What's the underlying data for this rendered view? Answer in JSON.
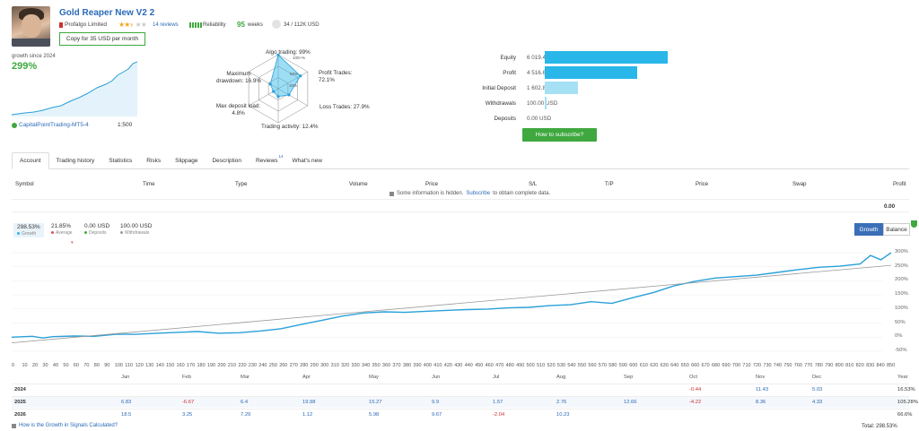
{
  "header": {
    "title": "Gold Reaper New V2 2",
    "provider": "Profalgo Limited",
    "rating": 2.5,
    "reviews": "14 reviews",
    "reliability_label": "Reliability",
    "weeks_num": "95",
    "weeks_label": "weeks",
    "subscribers": "34 / 112K USD",
    "copy_button": "Copy for 35 USD per month"
  },
  "summary": {
    "growth_since": "growth since 2024",
    "growth_value": "299%",
    "account": "CapitalPointTrading-MT5-4",
    "leverage": "1:500"
  },
  "radar": {
    "algo": "Algo trading: 99%",
    "profit_trades": "Profit Trades: 72.1%",
    "loss_trades": "Loss Trades: 27.9%",
    "trading_activity": "Trading activity: 12.4%",
    "max_deposit_load": "Max deposit load: 4.8%",
    "max_drawdown": "Maximum drawdown: 16.9%",
    "rings": [
      "100+%",
      "50%",
      "30%"
    ],
    "values": [
      0.99,
      0.721,
      0.279,
      0.124,
      0.048,
      0.169
    ]
  },
  "financials": [
    {
      "label": "Equity",
      "value": "6 019.48 USD",
      "amount": 6019.48,
      "color": "#29b6e8"
    },
    {
      "label": "Profit",
      "value": "4 516.63 USD",
      "amount": 4516.63,
      "color": "#29b6e8"
    },
    {
      "label": "Initial Deposit",
      "value": "1 602.85 USD",
      "amount": 1602.85,
      "color": "#a6e0f5"
    },
    {
      "label": "Withdrawals",
      "value": "100.00 USD",
      "amount": 100.0,
      "color": "#a6e0f5"
    },
    {
      "label": "Deposits",
      "value": "0.00 USD",
      "amount": 0,
      "color": "#a6e0f5"
    }
  ],
  "subscribe_button": "How to subscribe?",
  "tabs": [
    {
      "label": "Account",
      "active": true
    },
    {
      "label": "Trading history"
    },
    {
      "label": "Statistics"
    },
    {
      "label": "Risks"
    },
    {
      "label": "Slippage"
    },
    {
      "label": "Description"
    },
    {
      "label": "Reviews",
      "sup": "14"
    },
    {
      "label": "What's new"
    }
  ],
  "table": {
    "headers": [
      "Symbol",
      "Time",
      "Type",
      "Volume",
      "Price",
      "S/L",
      "T/P",
      "Price",
      "Swap",
      "Profit"
    ],
    "hidden_note_pre": "Some information is hidden.",
    "hidden_note_link": "Subscribe",
    "hidden_note_post": "to obtain complete data.",
    "total_profit": "0.00"
  },
  "stats": [
    {
      "value": "298.53%",
      "label": "Growth",
      "color": "#29b6e8"
    },
    {
      "value": "21.85%",
      "label": "Average",
      "color": "#e05050"
    },
    {
      "value": "0.00 USD",
      "label": "Deposits",
      "color": "#3fa83f"
    },
    {
      "value": "100.00 USD",
      "label": "Withdrawals",
      "color": "#999999"
    }
  ],
  "chart_toggle": {
    "growth": "Growth",
    "balance": "Balance"
  },
  "chart_data": {
    "type": "line",
    "x_ticks": [
      0,
      10,
      20,
      30,
      40,
      50,
      60,
      70,
      80,
      90,
      100,
      110,
      120,
      130,
      140,
      150,
      160,
      170,
      180,
      190,
      200,
      210,
      220,
      230,
      240,
      250,
      260,
      270,
      280,
      290,
      300,
      310,
      320,
      330,
      340,
      350,
      360,
      370,
      380,
      390,
      400,
      410,
      420,
      430,
      440,
      450,
      460,
      470,
      480,
      490,
      500,
      510,
      520,
      530,
      540,
      550,
      560,
      570,
      580,
      590,
      600,
      610,
      620,
      630,
      640,
      650,
      660,
      670,
      680,
      690,
      700,
      710,
      720,
      730,
      740,
      750,
      760,
      770,
      780,
      790,
      800,
      810,
      820,
      830,
      840,
      850
    ],
    "y_ticks": [
      "300%",
      "250%",
      "200%",
      "150%",
      "100%",
      "50%",
      "0%",
      "-50%"
    ],
    "ylim": [
      -50,
      300
    ],
    "xlim": [
      0,
      850
    ],
    "series": [
      {
        "color": "#29a0d8",
        "x": [
          0,
          20,
          30,
          40,
          60,
          80,
          100,
          120,
          140,
          160,
          180,
          200,
          220,
          240,
          260,
          280,
          300,
          320,
          340,
          360,
          380,
          400,
          420,
          440,
          460,
          480,
          500,
          520,
          540,
          560,
          580,
          600,
          620,
          640,
          660,
          680,
          700,
          720,
          740,
          760,
          780,
          800,
          820,
          830,
          840,
          850
        ],
        "values": [
          0,
          3,
          -3,
          2,
          4,
          3,
          10,
          10,
          14,
          17,
          20,
          14,
          16,
          22,
          30,
          45,
          60,
          75,
          86,
          90,
          88,
          92,
          95,
          98,
          100,
          104,
          106,
          112,
          115,
          126,
          120,
          140,
          158,
          182,
          198,
          210,
          215,
          220,
          230,
          240,
          248,
          252,
          260,
          290,
          275,
          300
        ]
      },
      {
        "color": "#999999",
        "x": [
          0,
          850
        ],
        "values": [
          -20,
          255
        ]
      }
    ]
  },
  "months": [
    "Jan",
    "Feb",
    "Mar",
    "Apr",
    "May",
    "Jun",
    "Jul",
    "Aug",
    "Sep",
    "Oct",
    "Nov",
    "Dec",
    "Year"
  ],
  "yearly": [
    {
      "year": "2024",
      "vals": [
        "",
        "",
        "",
        "",
        "",
        "",
        "",
        "",
        "",
        "-0.44",
        "11.43",
        "5.03",
        "16.53%"
      ]
    },
    {
      "year": "2025",
      "vals": [
        "6.83",
        "-6.67",
        "6.4",
        "19.98",
        "15.27",
        "9.9",
        "1.57",
        "2.76",
        "12.66",
        "-4.22",
        "8.36",
        "4.33",
        "105.28%"
      ]
    },
    {
      "year": "2026",
      "vals": [
        "18.5",
        "3.25",
        "7.29",
        "1.12",
        "5.98",
        "9.67",
        "-2.04",
        "10.23",
        "",
        "",
        "",
        "",
        "66.6%"
      ]
    }
  ],
  "footer": {
    "note": "How is the Growth in Signals Calculated?",
    "total": "Total: 298.53%"
  }
}
